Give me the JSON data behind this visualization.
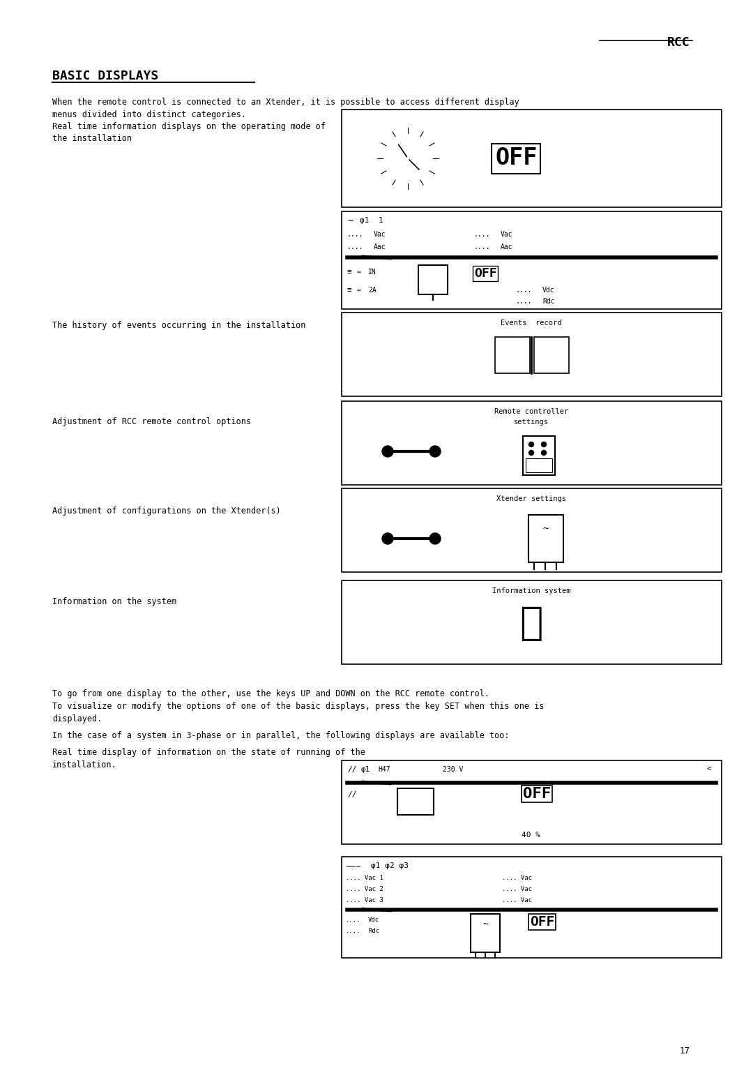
{
  "bg_color": "#ffffff",
  "page_width": 10.8,
  "page_height": 15.28,
  "dpi": 100,
  "header_rcc": "RCC",
  "title": "BASIC DISPLAYS",
  "intro_line1": "When the remote control is connected to an Xtender, it is possible to access different display",
  "intro_line2": "menus divided into distinct categories.",
  "intro_line3": "Real time information displays on the operating mode of",
  "intro_line4": "the installation",
  "section1_text": "The history of events occurring in the installation",
  "section2_text": "Adjustment of RCC remote control options",
  "section3_text": "Adjustment of configurations on the Xtender(s)",
  "section4_text": "Information on the system",
  "footer_line1": "To go from one display to the other, use the keys UP and DOWN on the RCC remote control.",
  "footer_line2": "To visualize or modify the options of one of the basic displays, press the key SET when this one is",
  "footer_line3": "displayed.",
  "footer_line4": "In the case of a system in 3-phase or in parallel, the following displays are available too:",
  "footer_line5": "Real time display of information on the state of running of the",
  "footer_line6": "installation.",
  "page_number": "17"
}
